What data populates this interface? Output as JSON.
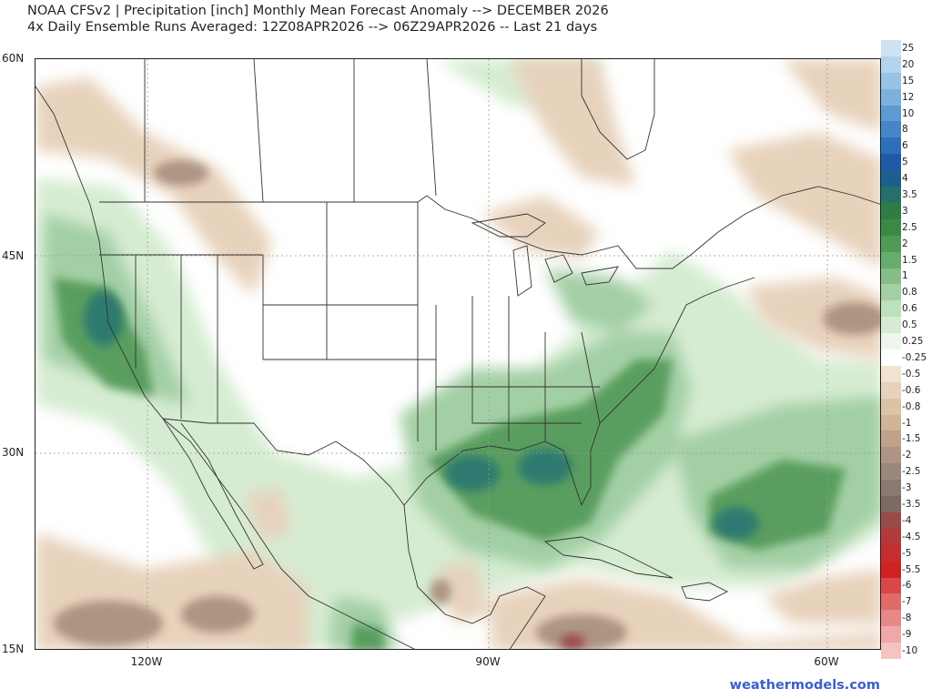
{
  "header": {
    "title_line1": "NOAA CFSv2 | Precipitation [inch] Monthly Mean Forecast Anomaly --> DECEMBER 2026",
    "title_line2": "4x Daily Ensemble Runs Averaged: 12Z08APR2026 --> 06Z29APR2026 -- Last 21 days"
  },
  "map": {
    "lat_labels": [
      "60N",
      "45N",
      "30N",
      "15N"
    ],
    "lon_labels": [
      "120W",
      "90W",
      "60W"
    ],
    "land_fill": "#ffffff",
    "border_color": "#333333"
  },
  "legend": {
    "labels": [
      "25",
      "20",
      "15",
      "12",
      "10",
      "8",
      "6",
      "5",
      "4",
      "3.5",
      "3",
      "2.5",
      "2",
      "1.5",
      "1",
      "0.8",
      "0.6",
      "0.5",
      "0.25",
      "-0.25",
      "-0.5",
      "-0.6",
      "-0.8",
      "-1",
      "-1.5",
      "-2",
      "-2.5",
      "-3",
      "-3.5",
      "-4",
      "-4.5",
      "-5",
      "-5.5",
      "-6",
      "-7",
      "-8",
      "-9",
      "-10"
    ],
    "colors": [
      "#cfe2f3",
      "#b4d3ec",
      "#98c2e6",
      "#7cb1de",
      "#5d9bd4",
      "#4486c8",
      "#2d6fba",
      "#1f5aa8",
      "#1b5f8f",
      "#266f6a",
      "#2f7d46",
      "#3a8a45",
      "#4f9a56",
      "#68ab6e",
      "#86bd88",
      "#a3cfa4",
      "#bde0bd",
      "#d6ecd2",
      "#eef7ec",
      "#ffffff",
      "#f1e3d2",
      "#e7d2bb",
      "#dcc3a8",
      "#cfb497",
      "#bfa28a",
      "#ad9483",
      "#9a877b",
      "#8a7a70",
      "#7d6b63",
      "#9b4a4a",
      "#b23a3a",
      "#c42e2e",
      "#d02222",
      "#d84848",
      "#e06a6a",
      "#e88888",
      "#f0a7a7",
      "#f6c3c3"
    ]
  },
  "credit": "weathermodels.com"
}
